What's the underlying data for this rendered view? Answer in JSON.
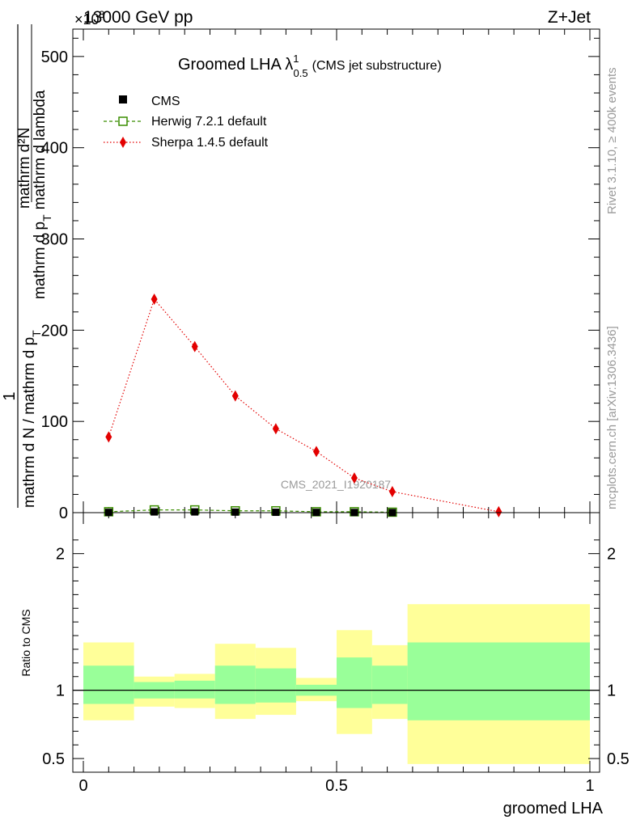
{
  "header": {
    "energy": "13000 GeV pp",
    "process": "Z+Jet",
    "exponent": "×10",
    "exponent_power": "3"
  },
  "side_labels": {
    "rivet": "Rivet 3.1.10, ≥ 400k events",
    "mcplots": "mcplots.cern.ch [arXiv:1306.3436]"
  },
  "colors": {
    "cms": "#000000",
    "herwig": "#3a8d00",
    "sherpa": "#e30000",
    "stat_band": "#99ff99",
    "total_band": "#ffff99",
    "watermark": "#9a9a9a"
  },
  "chart_data": [
    {
      "type": "line",
      "title": "Groomed LHA λ",
      "title_sup": "1",
      "title_sub": "0.5",
      "title_suffix": "(CMS jet substructure)",
      "watermark": "CMS_2021_I1920187",
      "ylabel_numerator": "1",
      "ylabel_frac_num": "mathrm d²N",
      "ylabel_frac_den": "mathrm d N / mathrm d p",
      "ylabel_frac_den_sub": "T",
      "ylabel_frac_den2": "mathrm d p",
      "ylabel_frac_den2_sub": "T",
      "ylabel_frac_den3": "mathrm d lambda",
      "ylabel_full": "1 / mathrm d N / mathrm d p_T mathrm d²N / mathrm d p_T mathrm d lambda",
      "xlim": [
        0,
        1
      ],
      "ylim": [
        0,
        530
      ],
      "y_scale_note": "×10^3",
      "yticks": [
        0,
        100,
        200,
        300,
        400,
        500
      ],
      "legend": [
        {
          "name": "CMS",
          "marker": "filled-square"
        },
        {
          "name": "Herwig 7.2.1 default",
          "marker": "open-square"
        },
        {
          "name": "Sherpa 1.4.5 default",
          "marker": "filled-diamond"
        }
      ],
      "series": [
        {
          "name": "CMS",
          "x": [
            0.05,
            0.14,
            0.22,
            0.3,
            0.38,
            0.46,
            0.535,
            0.61
          ],
          "values": [
            0.3,
            0.8,
            0.8,
            0.6,
            0.4,
            0.3,
            0.2,
            0.1
          ]
        },
        {
          "name": "Herwig 7.2.1 default",
          "x": [
            0.05,
            0.14,
            0.22,
            0.3,
            0.38,
            0.46,
            0.535,
            0.61
          ],
          "values": [
            1,
            3,
            3,
            2,
            2,
            1,
            1,
            0.5
          ]
        },
        {
          "name": "Sherpa 1.4.5 default",
          "x": [
            0.05,
            0.14,
            0.22,
            0.3,
            0.38,
            0.46,
            0.535,
            0.61,
            0.82
          ],
          "values": [
            83,
            234,
            182,
            128,
            92,
            67,
            38,
            23,
            1
          ],
          "errors": [
            2,
            4,
            3,
            2,
            2,
            2,
            2,
            2,
            0
          ]
        }
      ]
    },
    {
      "type": "area",
      "ylabel": "Ratio to CMS",
      "xlabel": "groomed LHA",
      "xlim": [
        0,
        1
      ],
      "ylim": [
        0.4,
        2.3
      ],
      "yticks": [
        0.5,
        1,
        2
      ],
      "xticks": [
        0,
        0.5,
        1
      ],
      "ytick_labels": [
        "0.5",
        "1",
        "2"
      ],
      "xtick_labels": [
        "0",
        "0.5",
        "1"
      ],
      "reference_line": 1,
      "bins": [
        {
          "lo": 0.0,
          "hi": 0.1,
          "stat": [
            0.9,
            1.18
          ],
          "total": [
            0.78,
            1.35
          ]
        },
        {
          "lo": 0.1,
          "hi": 0.18,
          "stat": [
            0.94,
            1.06
          ],
          "total": [
            0.88,
            1.1
          ]
        },
        {
          "lo": 0.18,
          "hi": 0.26,
          "stat": [
            0.94,
            1.07
          ],
          "total": [
            0.87,
            1.12
          ]
        },
        {
          "lo": 0.26,
          "hi": 0.34,
          "stat": [
            0.9,
            1.18
          ],
          "total": [
            0.79,
            1.34
          ]
        },
        {
          "lo": 0.34,
          "hi": 0.42,
          "stat": [
            0.91,
            1.16
          ],
          "total": [
            0.82,
            1.31
          ]
        },
        {
          "lo": 0.42,
          "hi": 0.5,
          "stat": [
            0.96,
            1.04
          ],
          "total": [
            0.92,
            1.09
          ]
        },
        {
          "lo": 0.5,
          "hi": 0.57,
          "stat": [
            0.87,
            1.24
          ],
          "total": [
            0.68,
            1.44
          ]
        },
        {
          "lo": 0.57,
          "hi": 0.64,
          "stat": [
            0.9,
            1.18
          ],
          "total": [
            0.79,
            1.33
          ]
        },
        {
          "lo": 0.64,
          "hi": 1.0,
          "stat": [
            0.78,
            1.35
          ],
          "total": [
            0.46,
            1.63
          ]
        }
      ]
    }
  ]
}
